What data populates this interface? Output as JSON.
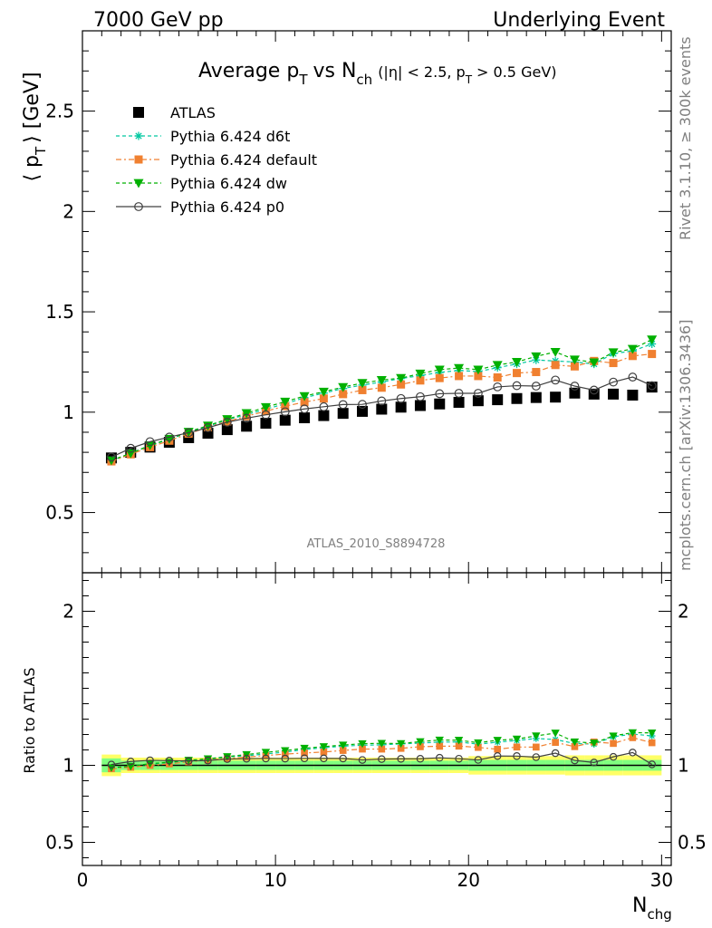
{
  "header": {
    "left": "7000 GeV pp",
    "right": "Underlying Event"
  },
  "side": {
    "rivet": "Rivet 3.1.10, ≥ 300k events",
    "mcplots": "mcplots.cern.ch [arXiv:1306.3436]"
  },
  "chart_data": {
    "type": "scatter",
    "title_parts": {
      "main": "Average p",
      "sub_t": "T",
      "vs": "vs N",
      "sub_ch": "ch",
      "cut_a": "(|η| < 2.5, p",
      "cut_sub": "T",
      "cut_b": "> 0.5 GeV)"
    },
    "analysis_tag": "ATLAS_2010_S8894728",
    "xlabel": "N",
    "xlabel_sub": "chg",
    "ylabel_main": "⟨ p",
    "ylabel_sub": "T",
    "ylabel_unit": "⟩ [GeV]",
    "ylabel_ratio": "Ratio to ATLAS",
    "xlim": [
      0,
      30.5
    ],
    "ylim_main": [
      0.2,
      2.9
    ],
    "ylim_ratio": [
      0.35,
      2.25
    ],
    "x_ticks": [
      0,
      10,
      20,
      30
    ],
    "y_ticks_main": [
      "0.5",
      "1",
      "1.5",
      "2",
      "2.5"
    ],
    "y_ticks_ratio": [
      "0.5",
      "1",
      "2"
    ],
    "x": [
      1.5,
      2.5,
      3.5,
      4.5,
      5.5,
      6.5,
      7.5,
      8.5,
      9.5,
      10.5,
      11.5,
      12.5,
      13.5,
      14.5,
      15.5,
      16.5,
      17.5,
      18.5,
      19.5,
      20.5,
      21.5,
      22.5,
      23.5,
      24.5,
      25.5,
      26.5,
      27.5,
      28.5,
      29.5
    ],
    "series": [
      {
        "name": "ATLAS",
        "color": "#000000",
        "marker": "square",
        "values": [
          0.772,
          0.8,
          0.826,
          0.85,
          0.873,
          0.895,
          0.913,
          0.93,
          0.945,
          0.96,
          0.972,
          0.983,
          0.994,
          1.004,
          1.015,
          1.025,
          1.033,
          1.041,
          1.049,
          1.057,
          1.062,
          1.068,
          1.073,
          1.075,
          1.095,
          1.09,
          1.09,
          1.085,
          1.125
        ]
      },
      {
        "name": "Pythia 6.424 d6t",
        "color": "#00c8a0",
        "marker": "star",
        "values": [
          0.758,
          0.795,
          0.834,
          0.864,
          0.9,
          0.93,
          0.962,
          0.988,
          1.015,
          1.042,
          1.072,
          1.095,
          1.118,
          1.135,
          1.15,
          1.168,
          1.182,
          1.198,
          1.208,
          1.202,
          1.222,
          1.24,
          1.26,
          1.255,
          1.25,
          1.24,
          1.292,
          1.305,
          1.34
        ]
      },
      {
        "name": "Pythia 6.424 default",
        "color": "#f08030",
        "marker": "square",
        "values": [
          0.755,
          0.79,
          0.826,
          0.858,
          0.893,
          0.925,
          0.954,
          0.98,
          1.005,
          1.03,
          1.05,
          1.068,
          1.09,
          1.11,
          1.122,
          1.138,
          1.158,
          1.17,
          1.18,
          1.18,
          1.173,
          1.195,
          1.2,
          1.235,
          1.228,
          1.255,
          1.245,
          1.28,
          1.29
        ]
      },
      {
        "name": "Pythia 6.424 dw",
        "color": "#00b000",
        "marker": "triangle",
        "values": [
          0.76,
          0.795,
          0.835,
          0.867,
          0.902,
          0.933,
          0.965,
          0.995,
          1.025,
          1.052,
          1.08,
          1.102,
          1.125,
          1.145,
          1.16,
          1.17,
          1.192,
          1.212,
          1.22,
          1.212,
          1.235,
          1.25,
          1.278,
          1.3,
          1.262,
          1.248,
          1.298,
          1.315,
          1.362
        ]
      },
      {
        "name": "Pythia 6.424 p0",
        "color": "#404040",
        "marker": "circle",
        "values": [
          0.776,
          0.82,
          0.853,
          0.876,
          0.898,
          0.923,
          0.95,
          0.97,
          0.987,
          1.002,
          1.016,
          1.027,
          1.038,
          1.039,
          1.056,
          1.068,
          1.077,
          1.092,
          1.094,
          1.094,
          1.126,
          1.132,
          1.13,
          1.16,
          1.13,
          1.11,
          1.15,
          1.175,
          1.132
        ]
      }
    ],
    "ratio_band": {
      "inner_half_width": [
        0.045,
        0.03,
        0.03,
        0.03,
        0.03,
        0.03,
        0.03,
        0.03,
        0.03,
        0.03,
        0.03,
        0.03,
        0.03,
        0.03,
        0.03,
        0.03,
        0.03,
        0.03,
        0.03,
        0.035,
        0.035,
        0.035,
        0.035,
        0.035,
        0.035,
        0.035,
        0.035,
        0.035,
        0.035
      ],
      "outer_half_width": [
        0.07,
        0.05,
        0.05,
        0.05,
        0.05,
        0.05,
        0.05,
        0.05,
        0.05,
        0.05,
        0.05,
        0.05,
        0.05,
        0.05,
        0.05,
        0.05,
        0.05,
        0.05,
        0.05,
        0.06,
        0.06,
        0.06,
        0.06,
        0.06,
        0.065,
        0.065,
        0.065,
        0.065,
        0.065
      ],
      "inner_color": "#80ff80",
      "outer_color": "#ffff66"
    },
    "legend_position": "top-left"
  }
}
